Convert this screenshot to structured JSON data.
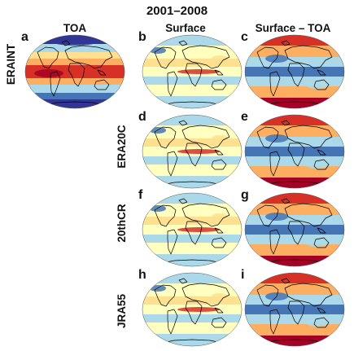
{
  "figure": {
    "title": "2001–2008",
    "columns": [
      "TOA",
      "Surface",
      "Surface – TOA"
    ],
    "rows": [
      "ERAINT",
      "ERA20C",
      "20thCR",
      "JRA55"
    ],
    "panels": [
      {
        "letter": "a",
        "row": 0,
        "col": 0,
        "style": "toa"
      },
      {
        "letter": "b",
        "row": 0,
        "col": 1,
        "style": "sfc"
      },
      {
        "letter": "c",
        "row": 0,
        "col": 2,
        "style": "diff"
      },
      {
        "letter": "d",
        "row": 1,
        "col": 1,
        "style": "sfc"
      },
      {
        "letter": "e",
        "row": 1,
        "col": 2,
        "style": "diff"
      },
      {
        "letter": "f",
        "row": 2,
        "col": 1,
        "style": "sfc"
      },
      {
        "letter": "g",
        "row": 2,
        "col": 2,
        "style": "diff"
      },
      {
        "letter": "h",
        "row": 3,
        "col": 1,
        "style": "sfc"
      },
      {
        "letter": "i",
        "row": 3,
        "col": 2,
        "style": "diff"
      }
    ]
  },
  "colors": {
    "dark_red": "#a50026",
    "red": "#d73027",
    "orange": "#fdae61",
    "light_yellow": "#fee090",
    "pale": "#ffffbf",
    "light_blue": "#abd9e9",
    "blue": "#4575b4",
    "dark_blue": "#313695",
    "land_outline": "#000000"
  }
}
